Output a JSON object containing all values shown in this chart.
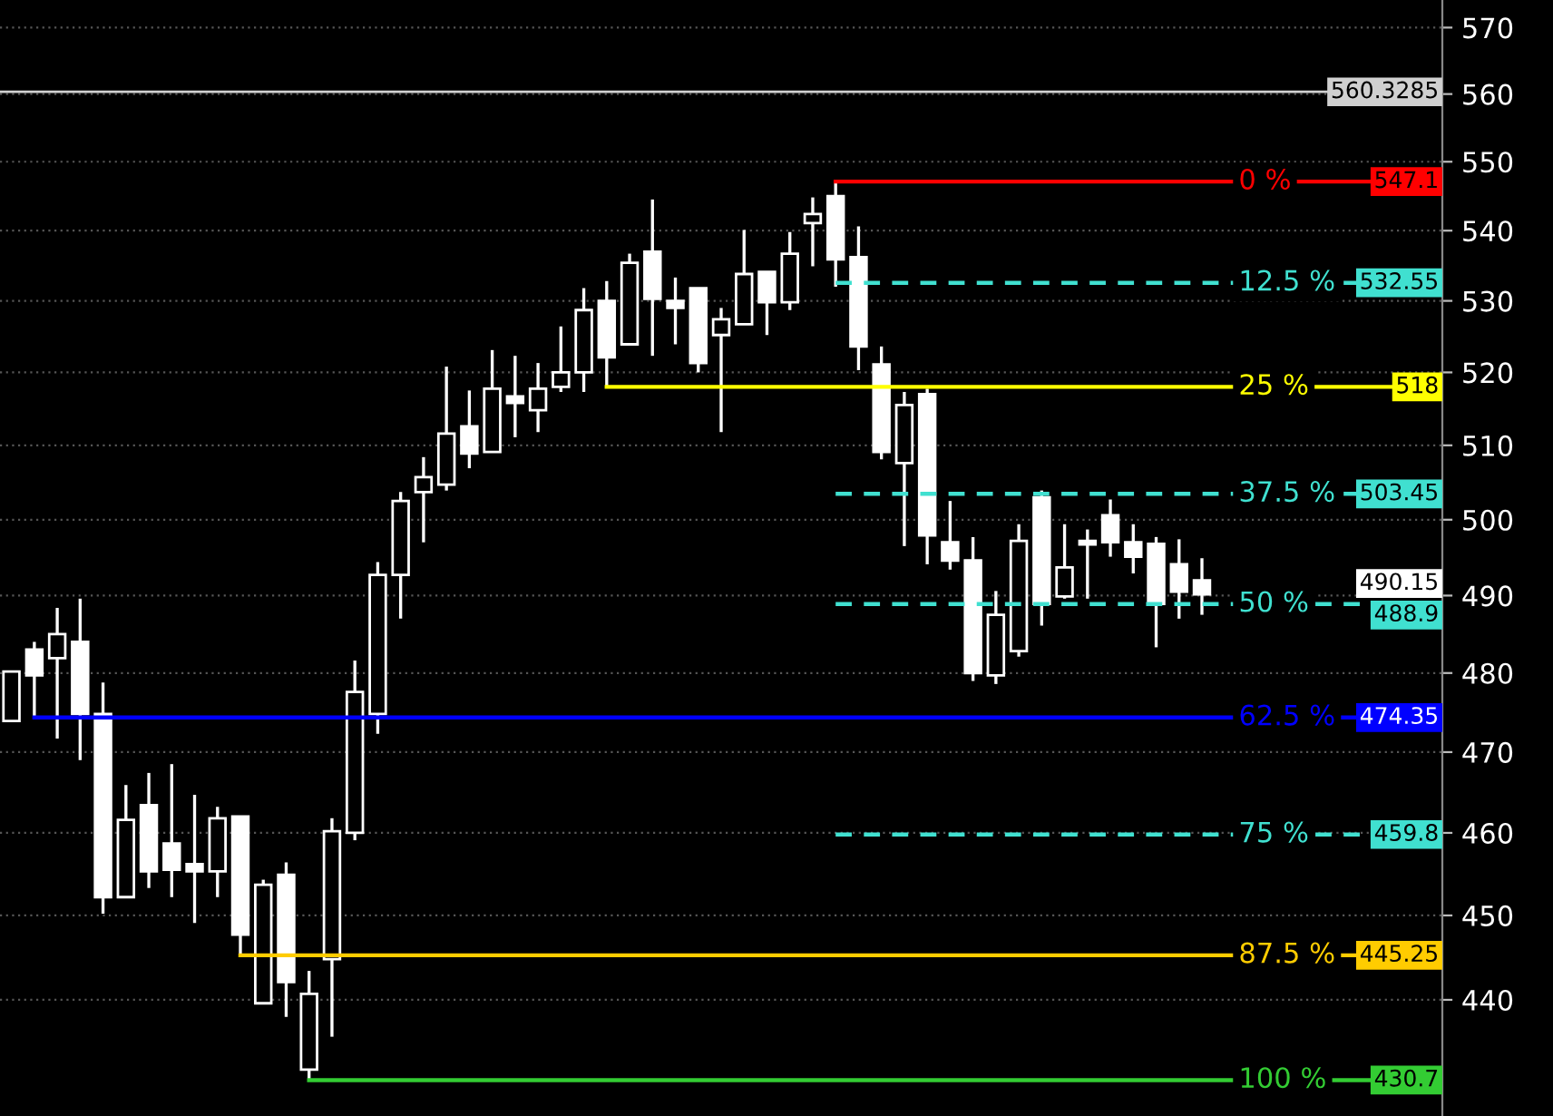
{
  "chart_data": {
    "type": "candlestick",
    "categories": [
      null,
      null,
      null,
      null,
      null,
      null,
      null,
      null,
      null,
      null,
      null,
      null,
      null,
      null,
      null,
      null,
      null,
      null,
      null,
      null,
      null,
      null,
      null,
      null,
      null,
      null,
      null,
      null,
      null,
      null,
      null,
      null,
      null,
      null,
      null,
      null,
      null,
      null,
      null,
      null,
      null,
      null,
      null,
      null,
      null,
      null,
      null,
      null,
      null,
      null,
      null,
      null,
      null,
      null,
      null,
      null,
      null,
      null,
      null,
      null,
      null,
      null,
      null
    ],
    "ohlc": [
      [
        473.9,
        480.2,
        473.9,
        480.2
      ],
      [
        483.0,
        484.0,
        474.35,
        479.7
      ],
      [
        481.9,
        488.4,
        471.7,
        485.0
      ],
      [
        484.0,
        489.6,
        469.0,
        474.8
      ],
      [
        474.8,
        478.8,
        450.2,
        452.2
      ],
      [
        452.2,
        465.9,
        452.2,
        461.6
      ],
      [
        463.4,
        467.4,
        453.3,
        455.3
      ],
      [
        458.7,
        468.5,
        452.2,
        455.5
      ],
      [
        456.2,
        464.7,
        449.1,
        455.3
      ],
      [
        455.3,
        463.2,
        452.2,
        461.8
      ],
      [
        462.0,
        462.0,
        445.25,
        447.7
      ],
      [
        439.6,
        454.3,
        439.6,
        453.7
      ],
      [
        454.9,
        456.4,
        438.0,
        442.1
      ],
      [
        431.9,
        443.4,
        430.7,
        440.7
      ],
      [
        444.8,
        461.8,
        435.7,
        460.2
      ],
      [
        460.0,
        481.6,
        459.1,
        477.6
      ],
      [
        474.8,
        494.4,
        472.3,
        492.7
      ],
      [
        492.7,
        503.7,
        487.0,
        502.5
      ],
      [
        503.7,
        508.4,
        497.0,
        505.7
      ],
      [
        504.7,
        520.8,
        503.9,
        511.6
      ],
      [
        512.6,
        517.5,
        506.9,
        508.9
      ],
      [
        509.1,
        523.1,
        509.1,
        517.75
      ],
      [
        516.7,
        522.3,
        511.1,
        515.8
      ],
      [
        514.8,
        521.3,
        511.8,
        517.75
      ],
      [
        518.0,
        526.4,
        517.3,
        520.0
      ],
      [
        520.0,
        531.8,
        517.3,
        528.7
      ],
      [
        530.0,
        532.8,
        518.0,
        522.1
      ],
      [
        523.9,
        536.7,
        523.9,
        535.4
      ],
      [
        537.0,
        544.5,
        522.3,
        530.3
      ],
      [
        530.0,
        533.3,
        523.9,
        529.0
      ],
      [
        531.8,
        531.8,
        520.0,
        521.3
      ],
      [
        525.2,
        529.0,
        511.8,
        527.4
      ],
      [
        526.7,
        540.1,
        526.7,
        533.8
      ],
      [
        534.1,
        534.1,
        525.2,
        529.8
      ],
      [
        529.8,
        539.8,
        528.7,
        536.7
      ],
      [
        541.1,
        544.8,
        534.9,
        542.4
      ],
      [
        545.0,
        547.1,
        532.0,
        535.9
      ],
      [
        536.2,
        540.6,
        520.3,
        523.6
      ],
      [
        521.1,
        523.6,
        508.1,
        509.1
      ],
      [
        507.6,
        517.3,
        496.5,
        515.5
      ],
      [
        517.0,
        517.75,
        494.1,
        497.9
      ],
      [
        497.0,
        502.5,
        493.4,
        494.6
      ],
      [
        494.6,
        497.7,
        479.0,
        480.0
      ],
      [
        479.7,
        490.6,
        478.6,
        487.5
      ],
      [
        482.8,
        499.4,
        482.1,
        497.2
      ],
      [
        503.0,
        503.9,
        486.1,
        488.9
      ],
      [
        489.9,
        499.4,
        489.6,
        493.7
      ],
      [
        497.2,
        498.7,
        489.6,
        496.7
      ],
      [
        500.6,
        502.7,
        495.1,
        497.0
      ],
      [
        497.0,
        499.4,
        492.9,
        495.1
      ],
      [
        496.8,
        497.7,
        483.3,
        488.9
      ],
      [
        494.1,
        497.4,
        487.0,
        490.5
      ],
      [
        492.0,
        494.9,
        487.5,
        490.15
      ],
      null,
      null,
      null,
      null,
      null,
      null,
      null,
      null,
      null,
      null
    ],
    "log": true,
    "ylim": [
      426.6,
      574.2
    ],
    "yticks": [
      440,
      450,
      460,
      470,
      480,
      490,
      500,
      510,
      520,
      530,
      540,
      550,
      560,
      570
    ],
    "grid": "y",
    "ref_lines": [
      {
        "axis": "y",
        "value": 560.3285,
        "label": "560.3285",
        "color": "#d0d0d0",
        "line_style": "solid"
      },
      {
        "axis": "y",
        "value": 547.1,
        "label": "547.1",
        "color": "#ff0000",
        "line_style": "solid"
      },
      {
        "axis": "y",
        "value": 532.55,
        "label": "532.55",
        "color": "#40e0d0",
        "line_style": "dashed"
      },
      {
        "axis": "y",
        "value": 518,
        "label": "518",
        "color": "#ffff00",
        "line_style": "solid"
      },
      {
        "axis": "y",
        "value": 503.45,
        "label": "503.45",
        "color": "#40e0d0",
        "line_style": "dashed"
      },
      {
        "axis": "y",
        "value": 488.9,
        "label": "488.9",
        "color": "#40e0d0",
        "line_style": "dashed"
      },
      {
        "axis": "y",
        "value": 474.35,
        "label": "474.35",
        "color": "#0000ff",
        "line_style": "solid"
      },
      {
        "axis": "y",
        "value": 459.8,
        "label": "459.8",
        "color": "#40e0d0",
        "line_style": "dashed"
      },
      {
        "axis": "y",
        "value": 445.25,
        "label": "445.25",
        "color": "#ffcc00",
        "line_style": "solid"
      },
      {
        "axis": "y",
        "value": 430.7,
        "label": "430.7",
        "color": "#33cc33",
        "line_style": "solid"
      }
    ],
    "annotations": [
      "0 %",
      "12.5 %",
      "25 %",
      "37.5 %",
      "50 %",
      "62.5 %",
      "75 %",
      "87.5 %",
      "100 %",
      "490.15"
    ]
  }
}
